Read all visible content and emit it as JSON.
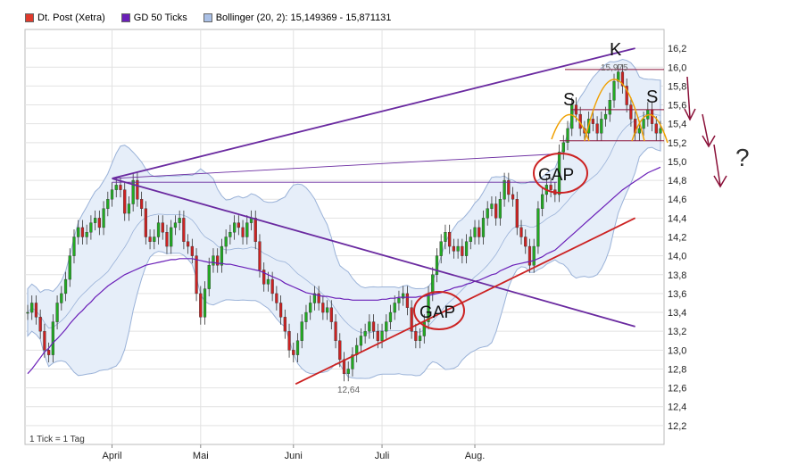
{
  "legend": {
    "items": [
      {
        "label": "Dt. Post (Xetra)",
        "color": "#e03a2c"
      },
      {
        "label": "GD 50 Ticks",
        "color": "#6a1fb8"
      },
      {
        "label": "Bollinger (20, 2): 15,149369 - 15,871131",
        "color": "#aac0e6"
      }
    ]
  },
  "footnote": "1 Tick = 1 Tag",
  "chart_data": {
    "type": "candlestick",
    "x_ticks": [
      "April",
      "Mai",
      "Juni",
      "Juli",
      "Aug."
    ],
    "y_ticks": [
      "12,2",
      "12,4",
      "12,6",
      "12,8",
      "13,0",
      "13,2",
      "13,4",
      "13,6",
      "13,8",
      "14,0",
      "14,2",
      "14,4",
      "14,6",
      "14,8",
      "15,0",
      "15,2",
      "15,4",
      "15,6",
      "15,8",
      "16,0",
      "16,2"
    ],
    "ylim": [
      12.0,
      16.4
    ],
    "annotations": {
      "low_label": "12,64",
      "high_label": "15,975",
      "gap_label": "GAP",
      "shoulder_label": "S",
      "head_label": "K",
      "question_label": "?"
    },
    "colors": {
      "up": "#22aa22",
      "down": "#cc2222",
      "gd50": "#6a1fb8",
      "trend_red": "#cc2222",
      "trend_purple": "#6a2aa0",
      "bollinger_fill": "#e6eef9",
      "bollinger_line": "#9ab2d8",
      "orange": "#f0a000",
      "ellipse": "#cc2222",
      "arrow": "#8a1038"
    },
    "close": [
      13.4,
      13.5,
      13.35,
      13.2,
      13.0,
      12.95,
      13.3,
      13.5,
      13.6,
      13.75,
      14.0,
      14.2,
      14.3,
      14.2,
      14.25,
      14.35,
      14.4,
      14.3,
      14.5,
      14.6,
      14.7,
      14.75,
      14.7,
      14.45,
      14.55,
      14.8,
      14.6,
      14.5,
      14.2,
      14.15,
      14.2,
      14.35,
      14.25,
      14.1,
      14.3,
      14.35,
      14.4,
      14.15,
      14.1,
      14.0,
      13.6,
      13.35,
      13.65,
      13.9,
      14.0,
      13.9,
      14.1,
      14.2,
      14.25,
      14.35,
      14.3,
      14.2,
      14.35,
      14.4,
      14.15,
      13.85,
      13.7,
      13.75,
      13.6,
      13.5,
      13.35,
      13.2,
      13.0,
      12.95,
      13.1,
      13.3,
      13.4,
      13.5,
      13.6,
      13.5,
      13.4,
      13.45,
      13.3,
      13.1,
      12.9,
      12.75,
      12.8,
      12.95,
      13.05,
      13.15,
      13.2,
      13.3,
      13.2,
      13.1,
      13.2,
      13.3,
      13.4,
      13.5,
      13.55,
      13.6,
      13.45,
      13.2,
      13.1,
      13.15,
      13.3,
      13.6,
      13.8,
      14.0,
      14.15,
      14.25,
      14.1,
      14.05,
      14.1,
      14.0,
      14.15,
      14.2,
      14.3,
      14.2,
      14.4,
      14.5,
      14.55,
      14.4,
      14.6,
      14.8,
      14.65,
      14.6,
      14.3,
      14.2,
      14.1,
      13.9,
      14.1,
      14.5,
      14.65,
      14.75,
      14.7,
      14.65,
      15.1,
      15.2,
      15.35,
      15.6,
      15.5,
      15.35,
      15.3,
      15.45,
      15.4,
      15.3,
      15.45,
      15.5,
      15.65,
      15.85,
      15.95,
      15.8,
      15.6,
      15.45,
      15.3,
      15.35,
      15.45,
      15.55,
      15.4,
      15.3,
      15.35
    ],
    "gd50": [
      12.75,
      12.8,
      12.86,
      12.92,
      12.98,
      13.02,
      13.08,
      13.12,
      13.17,
      13.22,
      13.28,
      13.33,
      13.38,
      13.42,
      13.47,
      13.51,
      13.56,
      13.6,
      13.64,
      13.68,
      13.71,
      13.74,
      13.77,
      13.8,
      13.82,
      13.84,
      13.86,
      13.88,
      13.9,
      13.91,
      13.92,
      13.93,
      13.94,
      13.95,
      13.96,
      13.96,
      13.97,
      13.97,
      13.97,
      13.97,
      13.96,
      13.95,
      13.94,
      13.93,
      13.93,
      13.92,
      13.92,
      13.91,
      13.91,
      13.9,
      13.89,
      13.88,
      13.87,
      13.86,
      13.85,
      13.84,
      13.82,
      13.8,
      13.78,
      13.76,
      13.74,
      13.71,
      13.69,
      13.67,
      13.65,
      13.63,
      13.61,
      13.6,
      13.59,
      13.58,
      13.57,
      13.57,
      13.56,
      13.55,
      13.55,
      13.54,
      13.54,
      13.53,
      13.53,
      13.53,
      13.53,
      13.53,
      13.53,
      13.53,
      13.54,
      13.54,
      13.55,
      13.55,
      13.56,
      13.56,
      13.56,
      13.56,
      13.56,
      13.57,
      13.57,
      13.58,
      13.59,
      13.6,
      13.61,
      13.63,
      13.64,
      13.66,
      13.67,
      13.68,
      13.7,
      13.71,
      13.73,
      13.74,
      13.76,
      13.78,
      13.8,
      13.81,
      13.84,
      13.86,
      13.88,
      13.9,
      13.91,
      13.92,
      13.93,
      13.94,
      13.95,
      13.97,
      13.99,
      14.02,
      14.04,
      14.06,
      14.1,
      14.14,
      14.18,
      14.22,
      14.26,
      14.3,
      14.34,
      14.38,
      14.42,
      14.46,
      14.5,
      14.54,
      14.58,
      14.62,
      14.66,
      14.7,
      14.73,
      14.76,
      14.79,
      14.82,
      14.85,
      14.88,
      14.9,
      14.92,
      14.94
    ]
  }
}
